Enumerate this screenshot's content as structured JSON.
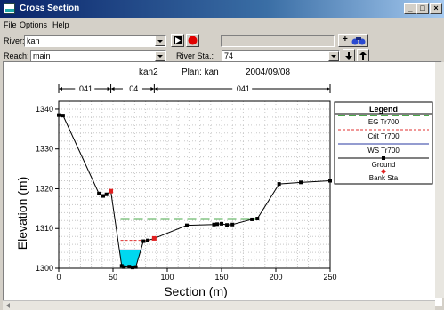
{
  "window": {
    "title": "Cross Section",
    "min": "_",
    "max": "□",
    "close": "×"
  },
  "menu": [
    "File",
    "Options",
    "Help"
  ],
  "toolbar": {
    "river_label": "River:",
    "river_value": "kan",
    "reach_label": "Reach:",
    "reach_value": "main",
    "river_sta_label": "River Sta.:",
    "river_sta_value": "74",
    "add_label": "+"
  },
  "plot": {
    "header_left": "kan2",
    "header_plan": "Plan: kan",
    "header_date": "2004/09/08",
    "manning_n": [
      ".041",
      ".04",
      ".041"
    ]
  },
  "legend": {
    "title": "Legend",
    "items": [
      {
        "name": "EG Tr700",
        "color": "#4aa84a",
        "style": "dash-long"
      },
      {
        "name": "Crit Tr700",
        "color": "#e03030",
        "style": "dash-short"
      },
      {
        "name": "WS Tr700",
        "color": "#2a3aa0",
        "style": "solid"
      },
      {
        "name": "Ground",
        "color": "#000000",
        "style": "line-marker"
      },
      {
        "name": "Bank Sta",
        "color": "#e02020",
        "style": "marker"
      }
    ]
  },
  "chart_data": {
    "type": "line",
    "xlabel": "Section (m)",
    "ylabel": "Elevation (m)",
    "xlim": [
      0,
      250
    ],
    "ylim": [
      1300,
      1342
    ],
    "xticks": [
      0,
      50,
      100,
      150,
      200,
      250
    ],
    "yticks": [
      1300,
      1310,
      1320,
      1330,
      1340
    ],
    "series": [
      {
        "name": "Ground",
        "color": "#000000",
        "x": [
          0,
          4,
          37,
          41,
          44,
          48,
          58,
          60,
          65,
          68,
          71,
          78,
          82,
          88,
          118,
          143,
          146,
          150,
          155,
          160,
          178,
          183,
          203,
          223,
          250
        ],
        "y": [
          1338.5,
          1338.4,
          1318.8,
          1318.2,
          1318.6,
          1319.4,
          1300.6,
          1300.3,
          1300.4,
          1300.2,
          1300.3,
          1306.8,
          1307.0,
          1307.5,
          1310.8,
          1311.0,
          1311.1,
          1311.2,
          1310.9,
          1311.0,
          1312.3,
          1312.5,
          1321.2,
          1321.6,
          1322.0
        ]
      },
      {
        "name": "Bank Sta",
        "color": "#e02020",
        "x": [
          48,
          88
        ],
        "y": [
          1319.4,
          1307.5
        ]
      },
      {
        "name": "EG Tr700",
        "color": "#4aa84a",
        "x": [
          57,
          183
        ],
        "y": [
          1312.4,
          1312.4
        ]
      },
      {
        "name": "Crit Tr700",
        "color": "#e03030",
        "x": [
          57,
          86
        ],
        "y": [
          1307.0,
          1307.0
        ]
      },
      {
        "name": "WS Tr700",
        "color": "#2a3aa0",
        "x": [
          56,
          79
        ],
        "y": [
          1304.6,
          1304.6
        ]
      }
    ],
    "bank_dividers": [
      0,
      48,
      88,
      250
    ]
  }
}
